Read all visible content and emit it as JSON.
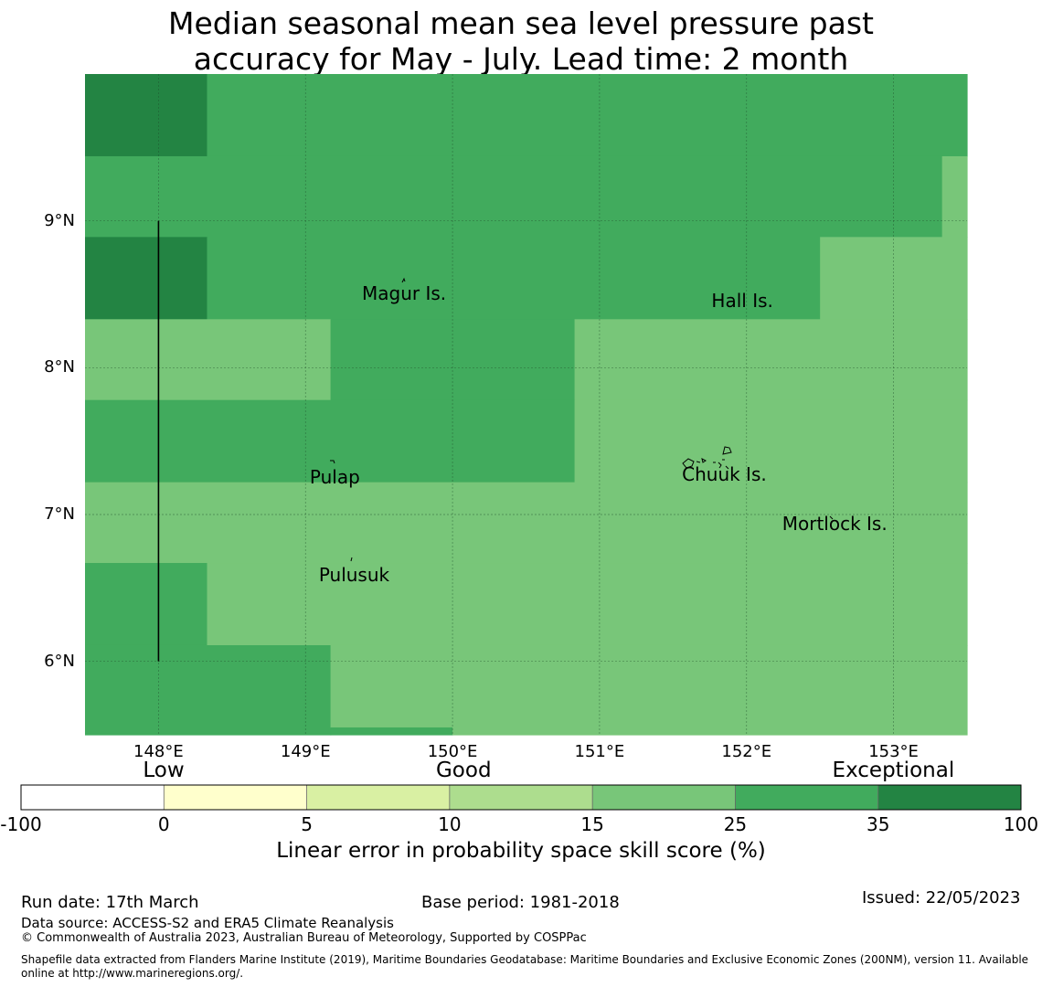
{
  "title": {
    "line1": "Median seasonal mean sea level pressure past",
    "line2": "accuracy for May - July. Lead time: 2 month"
  },
  "map": {
    "lon_range": [
      147.5,
      153.5
    ],
    "lat_range": [
      5.5,
      10.0
    ],
    "lat_ticks": [
      {
        "value": 9,
        "label": "9°N"
      },
      {
        "value": 8,
        "label": "8°N"
      },
      {
        "value": 7,
        "label": "7°N"
      },
      {
        "value": 6,
        "label": "6°N"
      }
    ],
    "lon_ticks": [
      {
        "value": 148,
        "label": "148°E"
      },
      {
        "value": 149,
        "label": "149°E"
      },
      {
        "value": 150,
        "label": "150°E"
      },
      {
        "value": 151,
        "label": "151°E"
      },
      {
        "value": 152,
        "label": "152°E"
      },
      {
        "value": 153,
        "label": "153°E"
      }
    ],
    "cells": [
      {
        "lon": [
          147.5,
          148.33
        ],
        "lat": [
          9.44,
          10.0
        ],
        "cls": "35-100"
      },
      {
        "lon": [
          148.33,
          153.5
        ],
        "lat": [
          9.44,
          10.0
        ],
        "cls": "25-35"
      },
      {
        "lon": [
          147.5,
          153.33
        ],
        "lat": [
          8.89,
          9.44
        ],
        "cls": "25-35"
      },
      {
        "lon": [
          153.33,
          153.5
        ],
        "lat": [
          8.89,
          9.44
        ],
        "cls": "15-25"
      },
      {
        "lon": [
          147.5,
          148.33
        ],
        "lat": [
          8.33,
          8.89
        ],
        "cls": "35-100"
      },
      {
        "lon": [
          148.33,
          152.5
        ],
        "lat": [
          8.33,
          8.89
        ],
        "cls": "25-35"
      },
      {
        "lon": [
          152.5,
          153.5
        ],
        "lat": [
          8.33,
          8.89
        ],
        "cls": "15-25"
      },
      {
        "lon": [
          147.5,
          149.17
        ],
        "lat": [
          7.78,
          8.33
        ],
        "cls": "15-25"
      },
      {
        "lon": [
          149.17,
          150.83
        ],
        "lat": [
          7.78,
          8.33
        ],
        "cls": "25-35"
      },
      {
        "lon": [
          150.83,
          153.5
        ],
        "lat": [
          7.78,
          8.33
        ],
        "cls": "15-25"
      },
      {
        "lon": [
          147.5,
          150.83
        ],
        "lat": [
          7.22,
          7.78
        ],
        "cls": "25-35"
      },
      {
        "lon": [
          150.83,
          153.5
        ],
        "lat": [
          7.22,
          7.78
        ],
        "cls": "15-25"
      },
      {
        "lon": [
          147.5,
          153.5
        ],
        "lat": [
          6.67,
          7.22
        ],
        "cls": "15-25"
      },
      {
        "lon": [
          147.5,
          148.33
        ],
        "lat": [
          6.11,
          6.67
        ],
        "cls": "25-35"
      },
      {
        "lon": [
          148.33,
          153.5
        ],
        "lat": [
          6.11,
          6.67
        ],
        "cls": "15-25"
      },
      {
        "lon": [
          147.5,
          149.17
        ],
        "lat": [
          5.5,
          6.11
        ],
        "cls": "25-35"
      },
      {
        "lon": [
          149.17,
          150.0
        ],
        "lat": [
          5.55,
          6.11
        ],
        "cls": "15-25"
      },
      {
        "lon": [
          149.17,
          150.0
        ],
        "lat": [
          5.5,
          5.55
        ],
        "cls": "25-35"
      },
      {
        "lon": [
          150.0,
          153.5
        ],
        "lat": [
          5.5,
          6.11
        ],
        "cls": "15-25"
      }
    ],
    "boundary_line": {
      "lon": 148.0,
      "lat": [
        6.0,
        9.0
      ]
    },
    "places": [
      {
        "name": "Magur Is.",
        "lon": 149.67,
        "lat": 8.5
      },
      {
        "name": "Hall Is.",
        "lon": 151.97,
        "lat": 8.45
      },
      {
        "name": "Pulap",
        "lon": 149.2,
        "lat": 7.25
      },
      {
        "name": "Chuuk Is.",
        "lon": 151.85,
        "lat": 7.27
      },
      {
        "name": "Mortlock Is.",
        "lon": 152.6,
        "lat": 6.93
      },
      {
        "name": "Pulusuk",
        "lon": 149.33,
        "lat": 6.58
      }
    ]
  },
  "colorbar": {
    "categories": [
      {
        "label": "Low",
        "value": -0.28
      },
      {
        "label": "Good",
        "value": 10.5
      },
      {
        "label": "Exceptional",
        "value": 42
      }
    ],
    "bins": [
      {
        "range": "-100 to 0",
        "color": "#ffffff"
      },
      {
        "range": "0 to 5",
        "color": "#ffffcc"
      },
      {
        "range": "5 to 10",
        "color": "#d9f0a3"
      },
      {
        "range": "10 to 15",
        "color": "#addd8e"
      },
      {
        "range": "15 to 25",
        "color": "#78c679"
      },
      {
        "range": "25 to 35",
        "color": "#41ab5d"
      },
      {
        "range": "35 to 100",
        "color": "#238443"
      }
    ],
    "ticks": [
      "-100",
      "0",
      "5",
      "10",
      "15",
      "25",
      "35",
      "100"
    ],
    "title": "Linear error in probability space skill score (%)"
  },
  "colors": {
    "15-25": "#78c679",
    "25-35": "#41ab5d",
    "35-100": "#238443"
  },
  "footer": {
    "run_date": "Run date: 17th March",
    "base_period": "Base period: 1981-2018",
    "issued": "Issued: 22/05/2023",
    "data_source": "Data source: ACCESS-S2 and ERA5 Climate Reanalysis",
    "copyright": "© Commonwealth of Australia 2023, Australian Bureau of Meteorology, Supported by COSPPac",
    "shapefile_line1": "Shapefile data extracted from Flanders Marine Institute (2019), Maritime Boundaries Geodatabase: Maritime Boundaries and Exclusive Economic Zones (200NM), version 11. Available",
    "shapefile_line2": "online at http://www.marineregions.org/."
  }
}
